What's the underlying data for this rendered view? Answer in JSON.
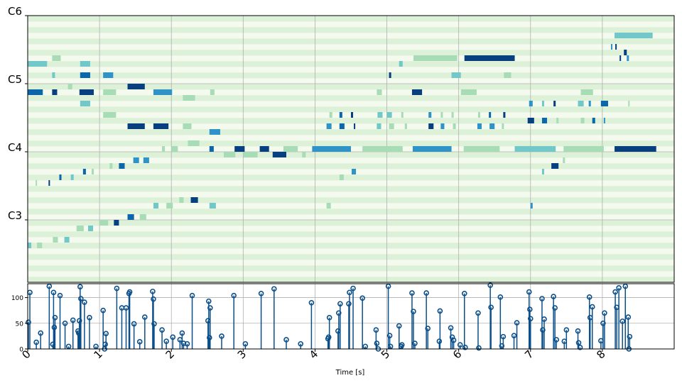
{
  "chart_data": [
    {
      "type": "heatmap",
      "title": "",
      "xlabel": "",
      "ylabel": "",
      "y_range_midi": [
        37,
        83
      ],
      "y_tick_labels": [
        {
          "midi": 48,
          "label": "C3"
        },
        {
          "midi": 60,
          "label": "C4"
        },
        {
          "midi": 72,
          "label": "C5"
        },
        {
          "midi": 84,
          "label": "C6"
        }
      ],
      "x_range_seconds": [
        0,
        9
      ],
      "x_grid_seconds": [
        0,
        1,
        2,
        3,
        4,
        5,
        6,
        7,
        8
      ],
      "grid": true,
      "note_colors": [
        "#a8dcb6",
        "#72c8c9",
        "#2f93c7",
        "#0b66aa",
        "#08407f"
      ],
      "notes": [
        [
          8.17,
          8.7,
          80,
          1
        ],
        [
          8.12,
          8.13,
          78,
          2
        ],
        [
          8.18,
          8.19,
          78,
          4
        ],
        [
          8.3,
          8.34,
          77,
          4
        ],
        [
          8.24,
          8.26,
          76,
          4
        ],
        [
          8.34,
          8.37,
          76,
          2
        ],
        [
          5.37,
          5.98,
          76,
          0
        ],
        [
          6.08,
          6.78,
          76,
          4
        ],
        [
          0.34,
          0.46,
          76,
          0
        ],
        [
          0.0,
          0.27,
          75,
          1
        ],
        [
          0.73,
          0.87,
          75,
          1
        ],
        [
          5.17,
          5.22,
          75,
          1
        ],
        [
          0.34,
          0.38,
          73,
          1
        ],
        [
          0.73,
          0.87,
          73,
          3
        ],
        [
          1.05,
          1.19,
          73,
          2
        ],
        [
          5.03,
          5.06,
          73,
          4
        ],
        [
          5.9,
          6.03,
          73,
          1
        ],
        [
          6.63,
          6.73,
          73,
          0
        ],
        [
          0.56,
          0.62,
          71,
          0
        ],
        [
          1.39,
          1.63,
          71,
          4
        ],
        [
          0.0,
          0.21,
          70,
          3
        ],
        [
          0.34,
          0.41,
          70,
          4
        ],
        [
          0.72,
          0.92,
          70,
          4
        ],
        [
          1.05,
          1.23,
          70,
          0
        ],
        [
          1.75,
          2.01,
          70,
          2
        ],
        [
          2.54,
          2.6,
          70,
          0
        ],
        [
          4.86,
          4.93,
          70,
          0
        ],
        [
          5.35,
          5.49,
          70,
          4
        ],
        [
          6.03,
          6.25,
          70,
          0
        ],
        [
          7.7,
          7.87,
          70,
          0
        ],
        [
          2.16,
          2.33,
          69,
          0
        ],
        [
          0.73,
          0.87,
          68,
          1
        ],
        [
          6.98,
          7.03,
          68,
          2
        ],
        [
          7.16,
          7.19,
          68,
          1
        ],
        [
          7.32,
          7.35,
          68,
          4
        ],
        [
          7.66,
          7.74,
          68,
          1
        ],
        [
          7.81,
          7.84,
          68,
          2
        ],
        [
          7.98,
          8.08,
          68,
          3
        ],
        [
          8.36,
          8.38,
          68,
          0
        ],
        [
          1.05,
          1.23,
          66,
          0
        ],
        [
          4.2,
          4.24,
          66,
          0
        ],
        [
          4.34,
          4.38,
          66,
          3
        ],
        [
          4.5,
          4.53,
          66,
          4
        ],
        [
          4.87,
          4.94,
          66,
          1
        ],
        [
          5.0,
          5.07,
          66,
          1
        ],
        [
          5.2,
          5.23,
          66,
          0
        ],
        [
          5.58,
          5.62,
          66,
          2
        ],
        [
          5.75,
          5.78,
          66,
          0
        ],
        [
          5.9,
          5.93,
          66,
          0
        ],
        [
          6.27,
          6.3,
          66,
          0
        ],
        [
          6.42,
          6.45,
          66,
          3
        ],
        [
          6.62,
          6.65,
          66,
          4
        ],
        [
          6.96,
          7.05,
          65,
          4
        ],
        [
          7.16,
          7.23,
          65,
          3
        ],
        [
          7.36,
          7.39,
          65,
          0
        ],
        [
          7.7,
          7.75,
          65,
          0
        ],
        [
          7.86,
          7.9,
          65,
          3
        ],
        [
          8.02,
          8.04,
          65,
          2
        ],
        [
          1.39,
          1.63,
          64,
          4
        ],
        [
          1.75,
          1.96,
          64,
          4
        ],
        [
          2.16,
          2.28,
          64,
          0
        ],
        [
          4.16,
          4.23,
          64,
          2
        ],
        [
          4.34,
          4.41,
          64,
          3
        ],
        [
          4.54,
          4.56,
          64,
          4
        ],
        [
          4.86,
          4.92,
          64,
          1
        ],
        [
          5.03,
          5.1,
          64,
          0
        ],
        [
          5.25,
          5.28,
          64,
          0
        ],
        [
          5.58,
          5.65,
          64,
          4
        ],
        [
          5.75,
          5.8,
          64,
          2
        ],
        [
          5.92,
          5.96,
          64,
          0
        ],
        [
          6.26,
          6.32,
          64,
          2
        ],
        [
          6.43,
          6.5,
          64,
          2
        ],
        [
          6.6,
          6.63,
          64,
          0
        ],
        [
          2.53,
          2.68,
          63,
          2
        ],
        [
          2.23,
          2.39,
          61,
          0
        ],
        [
          1.87,
          1.91,
          60,
          0
        ],
        [
          2.0,
          2.09,
          60,
          0
        ],
        [
          2.53,
          2.59,
          60,
          3
        ],
        [
          2.88,
          3.02,
          60,
          4
        ],
        [
          3.23,
          3.36,
          60,
          4
        ],
        [
          3.56,
          3.76,
          60,
          0
        ],
        [
          3.96,
          4.5,
          60,
          2
        ],
        [
          4.66,
          5.22,
          60,
          0
        ],
        [
          5.36,
          5.9,
          60,
          2
        ],
        [
          6.07,
          6.57,
          60,
          0
        ],
        [
          6.78,
          7.35,
          60,
          1
        ],
        [
          7.46,
          8.02,
          60,
          0
        ],
        [
          8.17,
          8.75,
          60,
          4
        ],
        [
          2.73,
          2.89,
          59,
          0
        ],
        [
          3.0,
          3.2,
          59,
          0
        ],
        [
          3.41,
          3.6,
          59,
          4
        ],
        [
          3.82,
          3.87,
          59,
          0
        ],
        [
          1.47,
          1.55,
          58,
          2
        ],
        [
          1.61,
          1.69,
          58,
          2
        ],
        [
          7.45,
          7.48,
          58,
          0
        ],
        [
          1.14,
          1.18,
          57,
          0
        ],
        [
          1.27,
          1.35,
          57,
          3
        ],
        [
          7.29,
          7.39,
          57,
          4
        ],
        [
          0.77,
          0.81,
          56,
          3
        ],
        [
          0.89,
          0.92,
          56,
          0
        ],
        [
          4.51,
          4.57,
          56,
          2
        ],
        [
          7.16,
          7.19,
          56,
          1
        ],
        [
          0.44,
          0.47,
          55,
          3
        ],
        [
          0.6,
          0.64,
          55,
          1
        ],
        [
          4.34,
          4.4,
          55,
          0
        ],
        [
          0.11,
          0.13,
          54,
          0
        ],
        [
          0.29,
          0.31,
          54,
          4
        ],
        [
          2.11,
          2.17,
          51,
          0
        ],
        [
          2.27,
          2.37,
          51,
          4
        ],
        [
          1.75,
          1.82,
          50,
          1
        ],
        [
          1.93,
          2.02,
          50,
          0
        ],
        [
          2.53,
          2.62,
          50,
          1
        ],
        [
          4.16,
          4.22,
          50,
          0
        ],
        [
          7.0,
          7.03,
          50,
          2
        ],
        [
          1.39,
          1.48,
          48,
          3
        ],
        [
          1.56,
          1.65,
          48,
          0
        ],
        [
          1.0,
          1.12,
          47,
          0
        ],
        [
          1.2,
          1.27,
          47,
          4
        ],
        [
          0.68,
          0.78,
          46,
          0
        ],
        [
          0.84,
          0.91,
          46,
          1
        ],
        [
          0.35,
          0.42,
          44,
          0
        ],
        [
          0.51,
          0.58,
          44,
          1
        ],
        [
          0.0,
          0.05,
          43,
          1
        ],
        [
          0.13,
          0.2,
          43,
          0
        ]
      ]
    },
    {
      "type": "stem",
      "xlabel": "Time [s]",
      "ylabel": "",
      "ylim": [
        0,
        127
      ],
      "y_ticks": [
        0,
        50,
        100
      ],
      "x_ticks": [
        0,
        1,
        2,
        3,
        4,
        5,
        6,
        7,
        8
      ],
      "x_range": [
        0,
        9
      ],
      "grid": true,
      "stem_color": "#0b4f8a",
      "points": [
        [
          0.01,
          52
        ],
        [
          0.03,
          110
        ],
        [
          0.12,
          13
        ],
        [
          0.18,
          31
        ],
        [
          0.3,
          122
        ],
        [
          0.35,
          9
        ],
        [
          0.36,
          110
        ],
        [
          0.37,
          42
        ],
        [
          0.38,
          61
        ],
        [
          0.45,
          104
        ],
        [
          0.52,
          50
        ],
        [
          0.57,
          5
        ],
        [
          0.63,
          56
        ],
        [
          0.7,
          35
        ],
        [
          0.71,
          31
        ],
        [
          0.72,
          55
        ],
        [
          0.73,
          121
        ],
        [
          0.74,
          98
        ],
        [
          0.79,
          91
        ],
        [
          0.86,
          61
        ],
        [
          0.95,
          5
        ],
        [
          1.05,
          75
        ],
        [
          1.07,
          0
        ],
        [
          1.08,
          9
        ],
        [
          1.09,
          30
        ],
        [
          1.24,
          118
        ],
        [
          1.31,
          80
        ],
        [
          1.37,
          80
        ],
        [
          1.41,
          108
        ],
        [
          1.42,
          111
        ],
        [
          1.48,
          49
        ],
        [
          1.56,
          14
        ],
        [
          1.63,
          62
        ],
        [
          1.74,
          112
        ],
        [
          1.75,
          97
        ],
        [
          1.76,
          49
        ],
        [
          1.87,
          37
        ],
        [
          1.93,
          15
        ],
        [
          2.02,
          23
        ],
        [
          2.12,
          18
        ],
        [
          2.15,
          31
        ],
        [
          2.17,
          11
        ],
        [
          2.22,
          10
        ],
        [
          2.29,
          104
        ],
        [
          2.51,
          55
        ],
        [
          2.52,
          93
        ],
        [
          2.53,
          22
        ],
        [
          2.54,
          80
        ],
        [
          2.7,
          25
        ],
        [
          2.87,
          104
        ],
        [
          3.03,
          10
        ],
        [
          3.25,
          108
        ],
        [
          3.43,
          117
        ],
        [
          3.6,
          18
        ],
        [
          3.8,
          10
        ],
        [
          3.95,
          90
        ],
        [
          4.18,
          20
        ],
        [
          4.19,
          23
        ],
        [
          4.2,
          61
        ],
        [
          4.32,
          35
        ],
        [
          4.33,
          70
        ],
        [
          4.35,
          88
        ],
        [
          4.47,
          88
        ],
        [
          4.48,
          110
        ],
        [
          4.53,
          118
        ],
        [
          4.66,
          99
        ],
        [
          4.7,
          5
        ],
        [
          4.85,
          37
        ],
        [
          4.86,
          11
        ],
        [
          4.88,
          0
        ],
        [
          5.02,
          122
        ],
        [
          5.04,
          26
        ],
        [
          5.05,
          5
        ],
        [
          5.17,
          45
        ],
        [
          5.2,
          5
        ],
        [
          5.21,
          8
        ],
        [
          5.35,
          109
        ],
        [
          5.37,
          73
        ],
        [
          5.39,
          11
        ],
        [
          5.55,
          109
        ],
        [
          5.57,
          40
        ],
        [
          5.73,
          15
        ],
        [
          5.74,
          74
        ],
        [
          5.89,
          41
        ],
        [
          5.91,
          23
        ],
        [
          5.93,
          17
        ],
        [
          6.02,
          8
        ],
        [
          6.08,
          108
        ],
        [
          6.09,
          3
        ],
        [
          6.27,
          70
        ],
        [
          6.28,
          2
        ],
        [
          6.44,
          124
        ],
        [
          6.45,
          81
        ],
        [
          6.58,
          101
        ],
        [
          6.6,
          6
        ],
        [
          6.62,
          24
        ],
        [
          6.77,
          26
        ],
        [
          6.81,
          51
        ],
        [
          6.98,
          111
        ],
        [
          6.99,
          77
        ],
        [
          7.0,
          59
        ],
        [
          7.16,
          98
        ],
        [
          7.17,
          37
        ],
        [
          7.19,
          58
        ],
        [
          7.32,
          102
        ],
        [
          7.34,
          80
        ],
        [
          7.36,
          18
        ],
        [
          7.47,
          15
        ],
        [
          7.5,
          37
        ],
        [
          7.66,
          35
        ],
        [
          7.67,
          12
        ],
        [
          7.69,
          3
        ],
        [
          7.82,
          101
        ],
        [
          7.83,
          61
        ],
        [
          7.86,
          82
        ],
        [
          7.98,
          16
        ],
        [
          8.01,
          50
        ],
        [
          8.03,
          70
        ],
        [
          8.18,
          111
        ],
        [
          8.2,
          81
        ],
        [
          8.23,
          119
        ],
        [
          8.28,
          54
        ],
        [
          8.32,
          122
        ],
        [
          8.36,
          62
        ],
        [
          8.37,
          0
        ],
        [
          8.38,
          24
        ]
      ]
    }
  ]
}
